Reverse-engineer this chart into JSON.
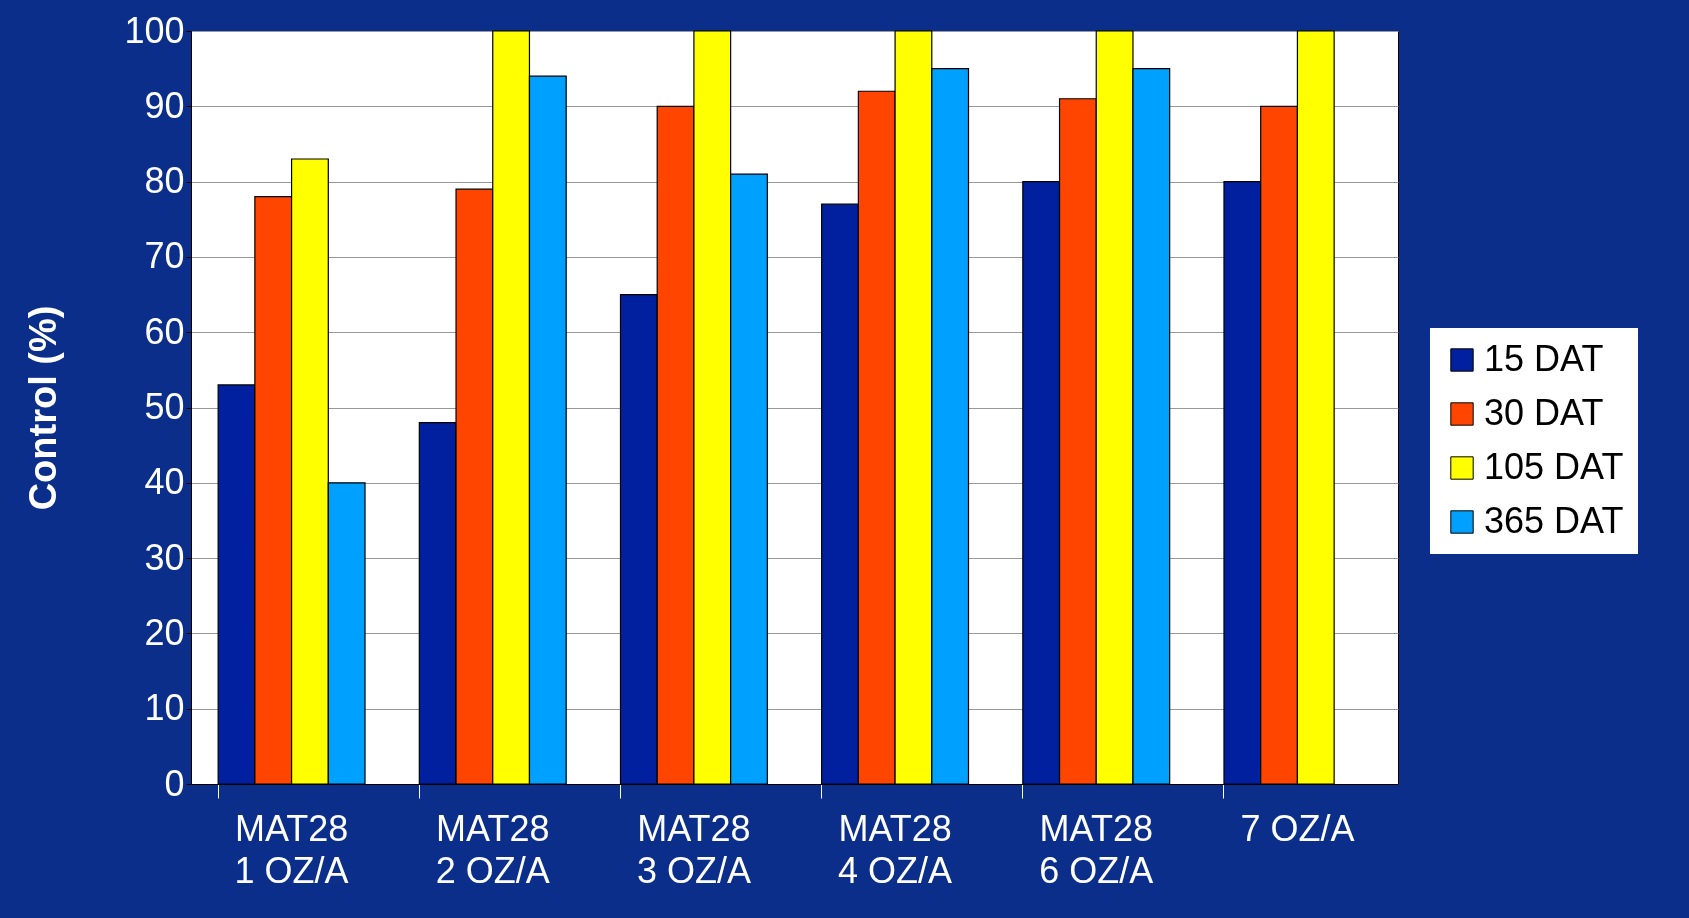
{
  "chart_data": {
    "type": "bar",
    "ylabel": "Control (%)",
    "categories": [
      "MAT28\n1 OZ/A",
      "MAT28\n2 OZ/A",
      "MAT28\n3 OZ/A",
      "MAT28\n4 OZ/A",
      "MAT28\n6 OZ/A",
      "7 OZ/A"
    ],
    "series": [
      {
        "name": "15 DAT",
        "color": "#0020a0",
        "values": [
          53,
          48,
          65,
          77,
          80,
          80
        ]
      },
      {
        "name": "30 DAT",
        "color": "#ff4500",
        "values": [
          78,
          79,
          90,
          92,
          91,
          90
        ]
      },
      {
        "name": "105 DAT",
        "color": "#ffff00",
        "values": [
          83,
          100,
          100,
          100,
          100,
          100
        ]
      },
      {
        "name": "365 DAT",
        "color": "#00a0ff",
        "values": [
          40,
          94,
          81,
          95,
          95,
          null
        ]
      }
    ],
    "ylim": [
      0,
      100
    ],
    "yticks": [
      0,
      10,
      20,
      30,
      40,
      50,
      60,
      70,
      80,
      90,
      100
    ],
    "grid": "y",
    "legend": "right"
  }
}
